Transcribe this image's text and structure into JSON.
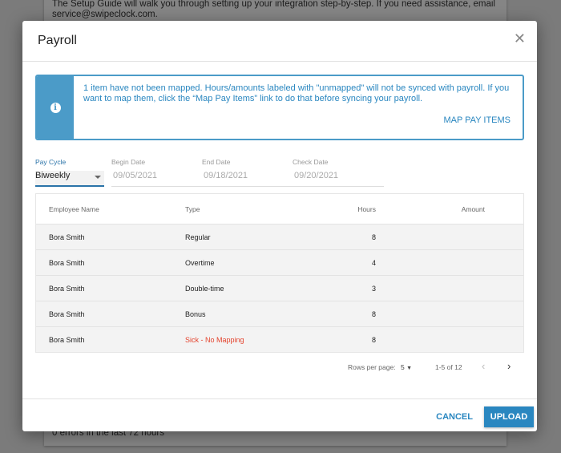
{
  "background": {
    "text_line1": "The Setup Guide will walk you through setting up your integration step-by-step. If you need assistance, email",
    "text_line2": "service@swipeclock.com.",
    "errors": "0 errors in the last 72 hours"
  },
  "modal": {
    "title": "Payroll",
    "close_icon": "close-icon"
  },
  "alert": {
    "icon": "info-icon",
    "message": "1 item have not been mapped. Hours/amounts labeled with \"unmapped\" will not be synced with payroll. If you want to map them, click the “Map Pay Items” link to do that before syncing your payroll.",
    "link": "MAP PAY ITEMS"
  },
  "fields": {
    "pay_cycle": {
      "label": "Pay Cycle",
      "value": "Biweekly"
    },
    "begin_date": {
      "label": "Begin Date",
      "value": "09/05/2021"
    },
    "end_date": {
      "label": "End Date",
      "value": "09/18/2021"
    },
    "check_date": {
      "label": "Check Date",
      "value": "09/20/2021"
    }
  },
  "table": {
    "headers": [
      "Employee Name",
      "Type",
      "Hours",
      "Amount"
    ],
    "rows": [
      {
        "name": "Bora Smith",
        "type": "Regular",
        "hours": "8",
        "amount": ""
      },
      {
        "name": "Bora Smith",
        "type": "Overtime",
        "hours": "4",
        "amount": ""
      },
      {
        "name": "Bora Smith",
        "type": "Double-time",
        "hours": "3",
        "amount": ""
      },
      {
        "name": "Bora Smith",
        "type": "Bonus",
        "hours": "8",
        "amount": ""
      },
      {
        "name": "Bora Smith",
        "type": "Sick - No Mapping",
        "hours": "8",
        "amount": ""
      }
    ]
  },
  "pagination": {
    "rows_per_page_label": "Rows per page:",
    "rows_per_page": "5",
    "range": "1-5 of 12"
  },
  "buttons": {
    "cancel": "CANCEL",
    "upload": "UPLOAD"
  },
  "colors": {
    "accent": "#2a87c0",
    "alert_strip": "#4b9bc8",
    "error": "#e4432d"
  }
}
